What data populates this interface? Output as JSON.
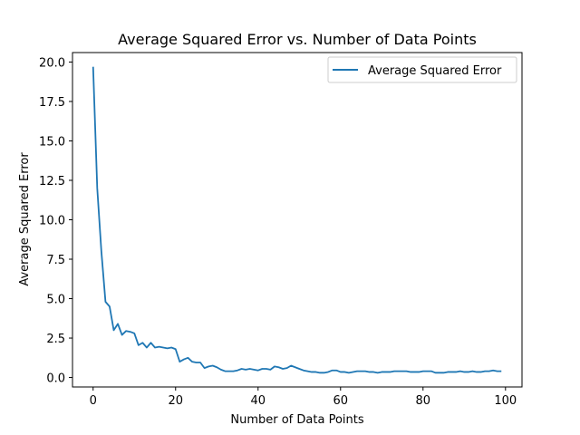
{
  "chart_data": {
    "type": "line",
    "title": "Average Squared Error vs. Number of Data Points",
    "xlabel": "Number of Data Points",
    "ylabel": "Average Squared Error",
    "xlim": [
      -5,
      104
    ],
    "ylim": [
      -0.6,
      20.6
    ],
    "xticks": [
      0,
      20,
      40,
      60,
      80,
      100
    ],
    "yticks": [
      0.0,
      2.5,
      5.0,
      7.5,
      10.0,
      12.5,
      15.0,
      17.5,
      20.0
    ],
    "ytick_labels": [
      "0.0",
      "2.5",
      "5.0",
      "7.5",
      "10.0",
      "12.5",
      "15.0",
      "17.5",
      "20.0"
    ],
    "xtick_labels": [
      "0",
      "20",
      "40",
      "60",
      "80",
      "100"
    ],
    "grid": false,
    "legend": "top-right",
    "line_color": "#1f77b4",
    "series": [
      {
        "name": "Average Squared Error",
        "x": [
          0,
          1,
          2,
          3,
          4,
          5,
          6,
          7,
          8,
          9,
          10,
          11,
          12,
          13,
          14,
          15,
          16,
          17,
          18,
          19,
          20,
          21,
          22,
          23,
          24,
          25,
          26,
          27,
          28,
          29,
          30,
          31,
          32,
          33,
          34,
          35,
          36,
          37,
          38,
          39,
          40,
          41,
          42,
          43,
          44,
          45,
          46,
          47,
          48,
          49,
          50,
          51,
          52,
          53,
          54,
          55,
          56,
          57,
          58,
          59,
          60,
          61,
          62,
          63,
          64,
          65,
          66,
          67,
          68,
          69,
          70,
          71,
          72,
          73,
          74,
          75,
          76,
          77,
          78,
          79,
          80,
          81,
          82,
          83,
          84,
          85,
          86,
          87,
          88,
          89,
          90,
          91,
          92,
          93,
          94,
          95,
          96,
          97,
          98,
          99
        ],
        "y": [
          19.7,
          12.0,
          8.0,
          4.8,
          4.5,
          3.0,
          3.4,
          2.7,
          2.95,
          2.9,
          2.8,
          2.05,
          2.2,
          1.9,
          2.2,
          1.9,
          1.95,
          1.9,
          1.85,
          1.9,
          1.8,
          1.0,
          1.15,
          1.25,
          1.0,
          0.95,
          0.95,
          0.6,
          0.7,
          0.75,
          0.65,
          0.5,
          0.4,
          0.4,
          0.4,
          0.45,
          0.55,
          0.5,
          0.55,
          0.5,
          0.45,
          0.55,
          0.55,
          0.5,
          0.7,
          0.65,
          0.55,
          0.6,
          0.75,
          0.65,
          0.55,
          0.45,
          0.4,
          0.35,
          0.35,
          0.3,
          0.3,
          0.35,
          0.45,
          0.45,
          0.35,
          0.35,
          0.3,
          0.35,
          0.4,
          0.4,
          0.4,
          0.35,
          0.35,
          0.3,
          0.35,
          0.35,
          0.35,
          0.4,
          0.4,
          0.4,
          0.4,
          0.35,
          0.35,
          0.35,
          0.4,
          0.4,
          0.4,
          0.3,
          0.3,
          0.3,
          0.35,
          0.35,
          0.35,
          0.4,
          0.35,
          0.35,
          0.4,
          0.35,
          0.35,
          0.4,
          0.4,
          0.45,
          0.4,
          0.4
        ]
      }
    ]
  }
}
